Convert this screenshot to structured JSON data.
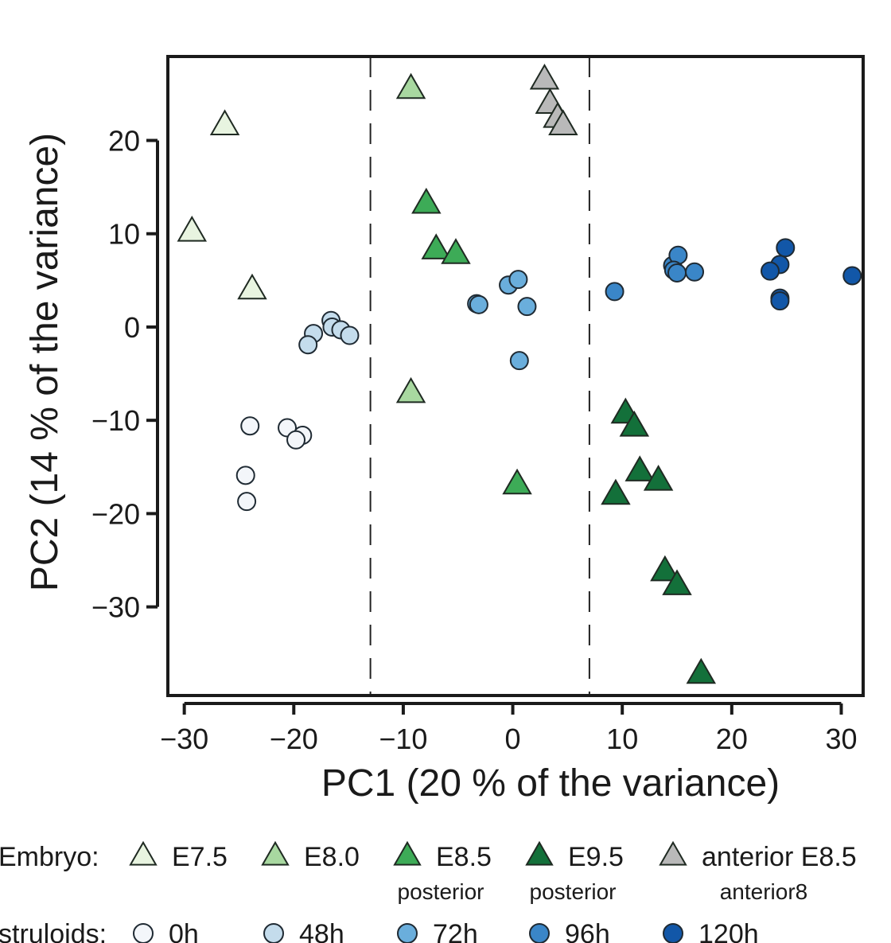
{
  "chart_data": {
    "type": "scatter",
    "xlabel": "PC1 (20 % of the variance)",
    "ylabel": "PC2 (14  % of the variance)",
    "xlim": [
      -31.5,
      32
    ],
    "ylim": [
      -39.5,
      29
    ],
    "xticks": [
      -30,
      -20,
      -10,
      0,
      10,
      20,
      30
    ],
    "yticks": [
      -30,
      -20,
      -10,
      0,
      10,
      20
    ],
    "vlines": [
      -13,
      7
    ],
    "vline_style": "dashed",
    "series": [
      {
        "name": "E7.5",
        "group": "Embryo",
        "marker": "triangle",
        "color": "#e8f4e0",
        "points": [
          {
            "x": -26.3,
            "y": 21.6
          },
          {
            "x": -29.3,
            "y": 10.2
          },
          {
            "x": -23.8,
            "y": 4.0
          }
        ]
      },
      {
        "name": "E8.0",
        "group": "Embryo",
        "marker": "triangle",
        "color": "#a8d8a0",
        "points": [
          {
            "x": -9.3,
            "y": 25.5
          },
          {
            "x": -9.3,
            "y": -7.1
          }
        ]
      },
      {
        "name": "E8.5",
        "group": "Embryo",
        "marker": "triangle",
        "color": "#3dab57",
        "points": [
          {
            "x": -7.9,
            "y": 13.2
          },
          {
            "x": -7.0,
            "y": 8.3
          },
          {
            "x": -5.2,
            "y": 7.8
          },
          {
            "x": 0.4,
            "y": -16.9
          }
        ]
      },
      {
        "name": "E9.5",
        "group": "Embryo",
        "marker": "triangle",
        "color": "#13703a",
        "points": [
          {
            "x": 10.3,
            "y": -9.3
          },
          {
            "x": 11.1,
            "y": -10.7
          },
          {
            "x": 11.6,
            "y": -15.5
          },
          {
            "x": 13.3,
            "y": -16.5
          },
          {
            "x": 9.4,
            "y": -18.0
          },
          {
            "x": 13.9,
            "y": -26.2
          },
          {
            "x": 15.0,
            "y": -27.7
          },
          {
            "x": 17.2,
            "y": -37.2
          }
        ]
      },
      {
        "name": "anterior E8.5",
        "group": "Embryo",
        "marker": "triangle",
        "color": "#b9b9b9",
        "points": [
          {
            "x": 2.9,
            "y": 26.5
          },
          {
            "x": 3.4,
            "y": 23.9
          },
          {
            "x": 4.1,
            "y": 22.4
          },
          {
            "x": 4.6,
            "y": 21.6
          }
        ]
      },
      {
        "name": "0h",
        "group": "Gastruloids",
        "marker": "circle",
        "color": "#f3f6fa",
        "points": [
          {
            "x": -24.0,
            "y": -10.6
          },
          {
            "x": -20.6,
            "y": -10.8
          },
          {
            "x": -19.2,
            "y": -11.6
          },
          {
            "x": -19.8,
            "y": -12.1
          },
          {
            "x": -24.4,
            "y": -15.9
          },
          {
            "x": -24.3,
            "y": -18.7
          }
        ]
      },
      {
        "name": "48h",
        "group": "Gastruloids",
        "marker": "circle",
        "color": "#c4dcec",
        "points": [
          {
            "x": -16.6,
            "y": 0.7
          },
          {
            "x": -16.5,
            "y": 0.0
          },
          {
            "x": -15.7,
            "y": -0.3
          },
          {
            "x": -14.9,
            "y": -0.9
          },
          {
            "x": -18.2,
            "y": -0.7
          },
          {
            "x": -18.7,
            "y": -1.9
          }
        ]
      },
      {
        "name": "72h",
        "group": "Gastruloids",
        "marker": "circle",
        "color": "#6aaedc",
        "points": [
          {
            "x": -3.3,
            "y": 2.5
          },
          {
            "x": -3.1,
            "y": 2.4
          },
          {
            "x": -0.4,
            "y": 4.5
          },
          {
            "x": 0.5,
            "y": 5.1
          },
          {
            "x": 1.3,
            "y": 2.2
          },
          {
            "x": 0.6,
            "y": -3.6
          }
        ]
      },
      {
        "name": "96h",
        "group": "Gastruloids",
        "marker": "circle",
        "color": "#3a86c8",
        "points": [
          {
            "x": 9.3,
            "y": 3.8
          },
          {
            "x": 14.6,
            "y": 6.6
          },
          {
            "x": 15.1,
            "y": 7.7
          },
          {
            "x": 14.7,
            "y": 6.1
          },
          {
            "x": 15.0,
            "y": 5.8
          },
          {
            "x": 16.6,
            "y": 5.9
          }
        ]
      },
      {
        "name": "120h",
        "group": "Gastruloids",
        "marker": "circle",
        "color": "#1257a8",
        "points": [
          {
            "x": 24.9,
            "y": 8.5
          },
          {
            "x": 24.4,
            "y": 6.7
          },
          {
            "x": 23.5,
            "y": 6.0
          },
          {
            "x": 24.4,
            "y": 3.1
          },
          {
            "x": 24.4,
            "y": 2.8
          },
          {
            "x": 31.0,
            "y": 5.5
          }
        ]
      }
    ]
  },
  "legend": {
    "embryo_label": "Embryo:",
    "gastruloid_label": "struloids:",
    "embryo_items": [
      {
        "label": "E7.5",
        "sub": ""
      },
      {
        "label": "E8.0",
        "sub": ""
      },
      {
        "label": "E8.5",
        "sub": "posterior"
      },
      {
        "label": "E9.5",
        "sub": "posterior"
      },
      {
        "label": "anterior E8.5",
        "sub": "anterior8"
      }
    ],
    "gastruloid_items": [
      "0h",
      "48h",
      "72h",
      "96h",
      "120h"
    ]
  }
}
